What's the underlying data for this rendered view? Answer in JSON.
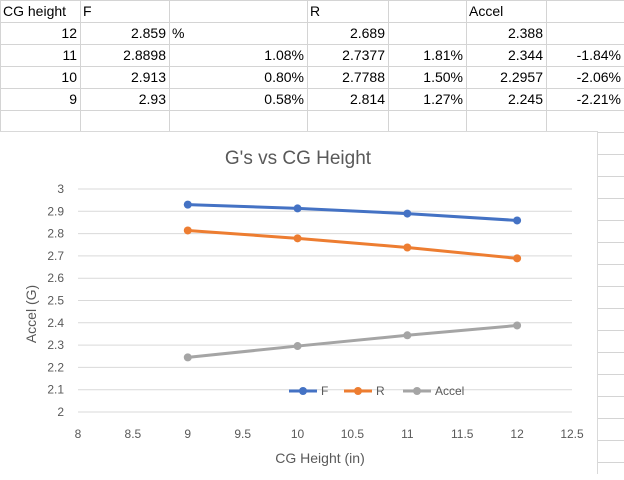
{
  "sheet": {
    "headers": {
      "cg": "CG height",
      "f": "F",
      "r": "R",
      "accel": "Accel"
    },
    "unit_cell": "%",
    "rows": [
      {
        "cg": "12",
        "f": "2.859",
        "fpct": "",
        "r": "2.689",
        "rpct": "",
        "a": "2.388",
        "apct": ""
      },
      {
        "cg": "11",
        "f": "2.8898",
        "fpct": "1.08%",
        "r": "2.7377",
        "rpct": "1.81%",
        "a": "2.344",
        "apct": "-1.84%"
      },
      {
        "cg": "10",
        "f": "2.913",
        "fpct": "0.80%",
        "r": "2.7788",
        "rpct": "1.50%",
        "a": "2.2957",
        "apct": "-2.06%"
      },
      {
        "cg": "9",
        "f": "2.93",
        "fpct": "0.58%",
        "r": "2.814",
        "rpct": "1.27%",
        "a": "2.245",
        "apct": "-2.21%"
      }
    ]
  },
  "chart_data": {
    "type": "line",
    "title": "G's vs CG Height",
    "xlabel": "CG Height (in)",
    "ylabel": "Accel (G)",
    "xlim": [
      8,
      12.5
    ],
    "ylim": [
      2,
      3
    ],
    "x_ticks": [
      "8",
      "8.5",
      "9",
      "9.5",
      "10",
      "10.5",
      "11",
      "11.5",
      "12",
      "12.5"
    ],
    "y_ticks": [
      "2",
      "2.1",
      "2.2",
      "2.3",
      "2.4",
      "2.5",
      "2.6",
      "2.7",
      "2.8",
      "2.9",
      "3"
    ],
    "grid": "horizontal",
    "legend_position": "bottom-inside",
    "series": [
      {
        "name": "F",
        "color": "#4472c4",
        "x": [
          12,
          11,
          10,
          9
        ],
        "y": [
          2.859,
          2.8898,
          2.913,
          2.93
        ]
      },
      {
        "name": "R",
        "color": "#ed7d31",
        "x": [
          12,
          11,
          10,
          9
        ],
        "y": [
          2.689,
          2.7377,
          2.7788,
          2.814
        ]
      },
      {
        "name": "Accel",
        "color": "#a5a5a5",
        "x": [
          12,
          11,
          10,
          9
        ],
        "y": [
          2.388,
          2.344,
          2.2957,
          2.245
        ]
      }
    ]
  }
}
